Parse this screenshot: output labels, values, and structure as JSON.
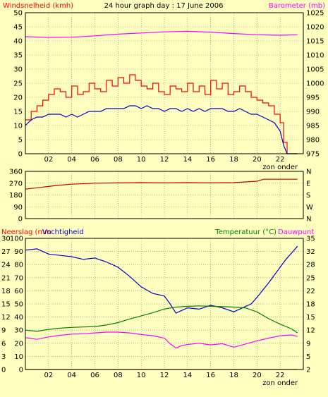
{
  "header": {
    "left_title": "Windsnelheid (kmh)",
    "center_title": "24 hour graph day : 17 June 2006",
    "right_title": "Barometer (mb)"
  },
  "sunset_label": "zon onder",
  "colors": {
    "background": "#ffffc0",
    "wind_gust": "#ff0000",
    "wind_speed": "#0000c8",
    "barometer": "#ff00ff",
    "wind_dir": "#c80000",
    "temperature": "#008000",
    "dewpoint": "#ff00ff",
    "humidity": "#0000c8",
    "rain": "#ff0000",
    "grid": "#808080"
  },
  "chart_data": [
    {
      "type": "line",
      "title": "24 hour graph day : 17 June 2006",
      "ylabel_left": "Windsnelheid (kmh)",
      "ylabel_right": "Barometer (mb)",
      "x_ticks": [
        "02",
        "04",
        "06",
        "08",
        "10",
        "12",
        "14",
        "16",
        "18",
        "20",
        "22"
      ],
      "y_left_ticks": [
        "0",
        "5",
        "10",
        "15",
        "20",
        "25",
        "30",
        "35",
        "40",
        "45",
        "50"
      ],
      "y_right_ticks": [
        "975",
        "980",
        "985",
        "990",
        "995",
        "1000",
        "1005",
        "1010",
        "1015",
        "1020",
        "1025"
      ],
      "ylim_left": [
        0,
        50
      ],
      "ylim_right": [
        975,
        1025
      ],
      "xlim": [
        0,
        24
      ],
      "grid": true,
      "series": [
        {
          "name": "Windsnelheid",
          "x": [
            0,
            0.5,
            1,
            1.5,
            2,
            2.5,
            3,
            3.5,
            4,
            4.5,
            5,
            5.5,
            6,
            6.5,
            7,
            7.5,
            8,
            8.5,
            9,
            9.5,
            10,
            10.5,
            11,
            11.5,
            12,
            12.5,
            13,
            13.5,
            14,
            14.5,
            15,
            15.5,
            16,
            16.5,
            17,
            17.5,
            18,
            18.5,
            19,
            19.5,
            20,
            20.5,
            21,
            21.5,
            22,
            22.3,
            22.6,
            23,
            23.5
          ],
          "y": [
            10,
            12,
            13,
            13,
            14,
            14,
            14,
            13,
            14,
            13,
            14,
            15,
            15,
            15,
            16,
            16,
            16,
            16,
            17,
            17,
            16,
            17,
            16,
            16,
            15,
            16,
            16,
            15,
            16,
            15,
            16,
            15,
            16,
            16,
            16,
            15,
            15,
            16,
            15,
            14,
            14,
            13,
            12,
            11,
            8,
            3,
            0,
            0,
            0
          ]
        },
        {
          "name": "Windstoten",
          "x": [
            0,
            0.5,
            1,
            1.5,
            2,
            2.5,
            3,
            3.5,
            4,
            4.5,
            5,
            5.5,
            6,
            6.5,
            7,
            7.5,
            8,
            8.5,
            9,
            9.5,
            10,
            10.5,
            11,
            11.5,
            12,
            12.5,
            13,
            13.5,
            14,
            14.5,
            15,
            15.5,
            16,
            16.5,
            17,
            17.5,
            18,
            18.5,
            19,
            19.5,
            20,
            20.5,
            21,
            21.5,
            22,
            22.3,
            22.6,
            23,
            23.5
          ],
          "y": [
            12,
            15,
            17,
            19,
            21,
            23,
            22,
            20,
            24,
            21,
            22,
            25,
            23,
            22,
            26,
            24,
            27,
            25,
            28,
            26,
            24,
            23,
            25,
            22,
            21,
            24,
            23,
            22,
            25,
            22,
            24,
            21,
            26,
            23,
            25,
            21,
            22,
            24,
            22,
            20,
            19,
            18,
            17,
            14,
            11,
            4,
            0,
            0,
            0
          ]
        },
        {
          "name": "Barometer",
          "axis": "right",
          "x": [
            0,
            2,
            4,
            6,
            8,
            10,
            12,
            14,
            16,
            18,
            20,
            22,
            23.5
          ],
          "y": [
            1016.5,
            1016.2,
            1016.3,
            1016.8,
            1017.4,
            1017.8,
            1018.2,
            1018.4,
            1018.1,
            1017.6,
            1017.2,
            1017.0,
            1017.2
          ]
        }
      ]
    },
    {
      "type": "line",
      "ylabel_right_labels": [
        "N",
        "W",
        "S",
        "E",
        "N"
      ],
      "y_ticks": [
        "0",
        "90",
        "180",
        "270",
        "360"
      ],
      "ylim": [
        0,
        360
      ],
      "xlim": [
        0,
        24
      ],
      "grid": true,
      "series": [
        {
          "name": "Windrichting",
          "x": [
            0,
            1,
            2,
            3,
            4,
            6,
            8,
            10,
            12,
            14,
            16,
            18,
            20,
            20.6,
            21,
            23.5
          ],
          "y": [
            225,
            235,
            245,
            255,
            262,
            270,
            272,
            274,
            272,
            274,
            272,
            274,
            285,
            300,
            300,
            300
          ]
        }
      ]
    },
    {
      "type": "line",
      "ylabel_left": "Neerslag (mm",
      "ylabel_left2": "Vochtigheid",
      "ylabel_right": "Temperatuur (°C)",
      "ylabel_right2": "Dauwpunt",
      "y_ticks_rain": [
        "0",
        "3",
        "6",
        "9",
        "12",
        "15",
        "18",
        "21",
        "24",
        "27",
        "30"
      ],
      "y_ticks_humidity": [
        "0",
        "10",
        "20",
        "30",
        "40",
        "50",
        "60",
        "70",
        "80",
        "90",
        "100"
      ],
      "y_ticks_temp": [
        "2",
        "5",
        "9",
        "12",
        "15",
        "18",
        "22",
        "25",
        "28",
        "32",
        "35"
      ],
      "ylim_rain": [
        0,
        30
      ],
      "ylim_humidity": [
        0,
        100
      ],
      "ylim_temp": [
        2,
        35
      ],
      "xlim": [
        0,
        24
      ],
      "grid": true,
      "series": [
        {
          "name": "Vochtigheid",
          "x": [
            0,
            1,
            2,
            3,
            4,
            5,
            6,
            7,
            8,
            9,
            10,
            11,
            12,
            12.5,
            13,
            13.5,
            14,
            15,
            16,
            17,
            18,
            18.5,
            19,
            19.5,
            20,
            21,
            22,
            22.5,
            23,
            23.5
          ],
          "y": [
            91,
            92,
            88,
            87,
            86,
            84,
            85,
            82,
            78,
            71,
            63,
            58,
            56,
            50,
            43,
            45,
            47,
            46,
            49,
            47,
            44,
            46,
            48,
            50,
            55,
            66,
            78,
            84,
            89,
            94
          ]
        },
        {
          "name": "Temperatuur",
          "axis": "right",
          "x": [
            0,
            1,
            2,
            3,
            4,
            5,
            6,
            7,
            8,
            9,
            10,
            11,
            12,
            13,
            14,
            15,
            16,
            17,
            18,
            19,
            20,
            21,
            22,
            23,
            23.5
          ],
          "y": [
            11.9,
            11.6,
            12.1,
            12.4,
            12.6,
            12.7,
            12.8,
            13.2,
            13.8,
            14.7,
            15.5,
            16.3,
            17.2,
            17.7,
            17.9,
            18.0,
            17.9,
            17.8,
            17.7,
            17.5,
            16.5,
            14.8,
            13.4,
            12.2,
            11.2
          ]
        },
        {
          "name": "Dauwpunt",
          "axis": "right",
          "x": [
            0,
            1,
            2,
            3,
            4,
            5,
            6,
            7,
            8,
            9,
            10,
            11,
            12,
            12.5,
            13,
            13.5,
            14,
            15,
            16,
            17,
            18,
            18.5,
            19,
            20,
            21,
            22,
            23,
            23.5
          ],
          "y": [
            10.0,
            9.6,
            10.2,
            10.6,
            10.9,
            11.0,
            11.2,
            11.4,
            11.4,
            11.2,
            10.8,
            10.5,
            9.9,
            8.5,
            7.4,
            8.0,
            8.3,
            8.6,
            8.2,
            8.5,
            7.6,
            8.0,
            8.4,
            9.2,
            9.9,
            10.5,
            10.7,
            10.3
          ]
        },
        {
          "name": "Neerslag",
          "x": [
            0,
            23.5
          ],
          "y": [
            0,
            0
          ]
        }
      ]
    }
  ]
}
